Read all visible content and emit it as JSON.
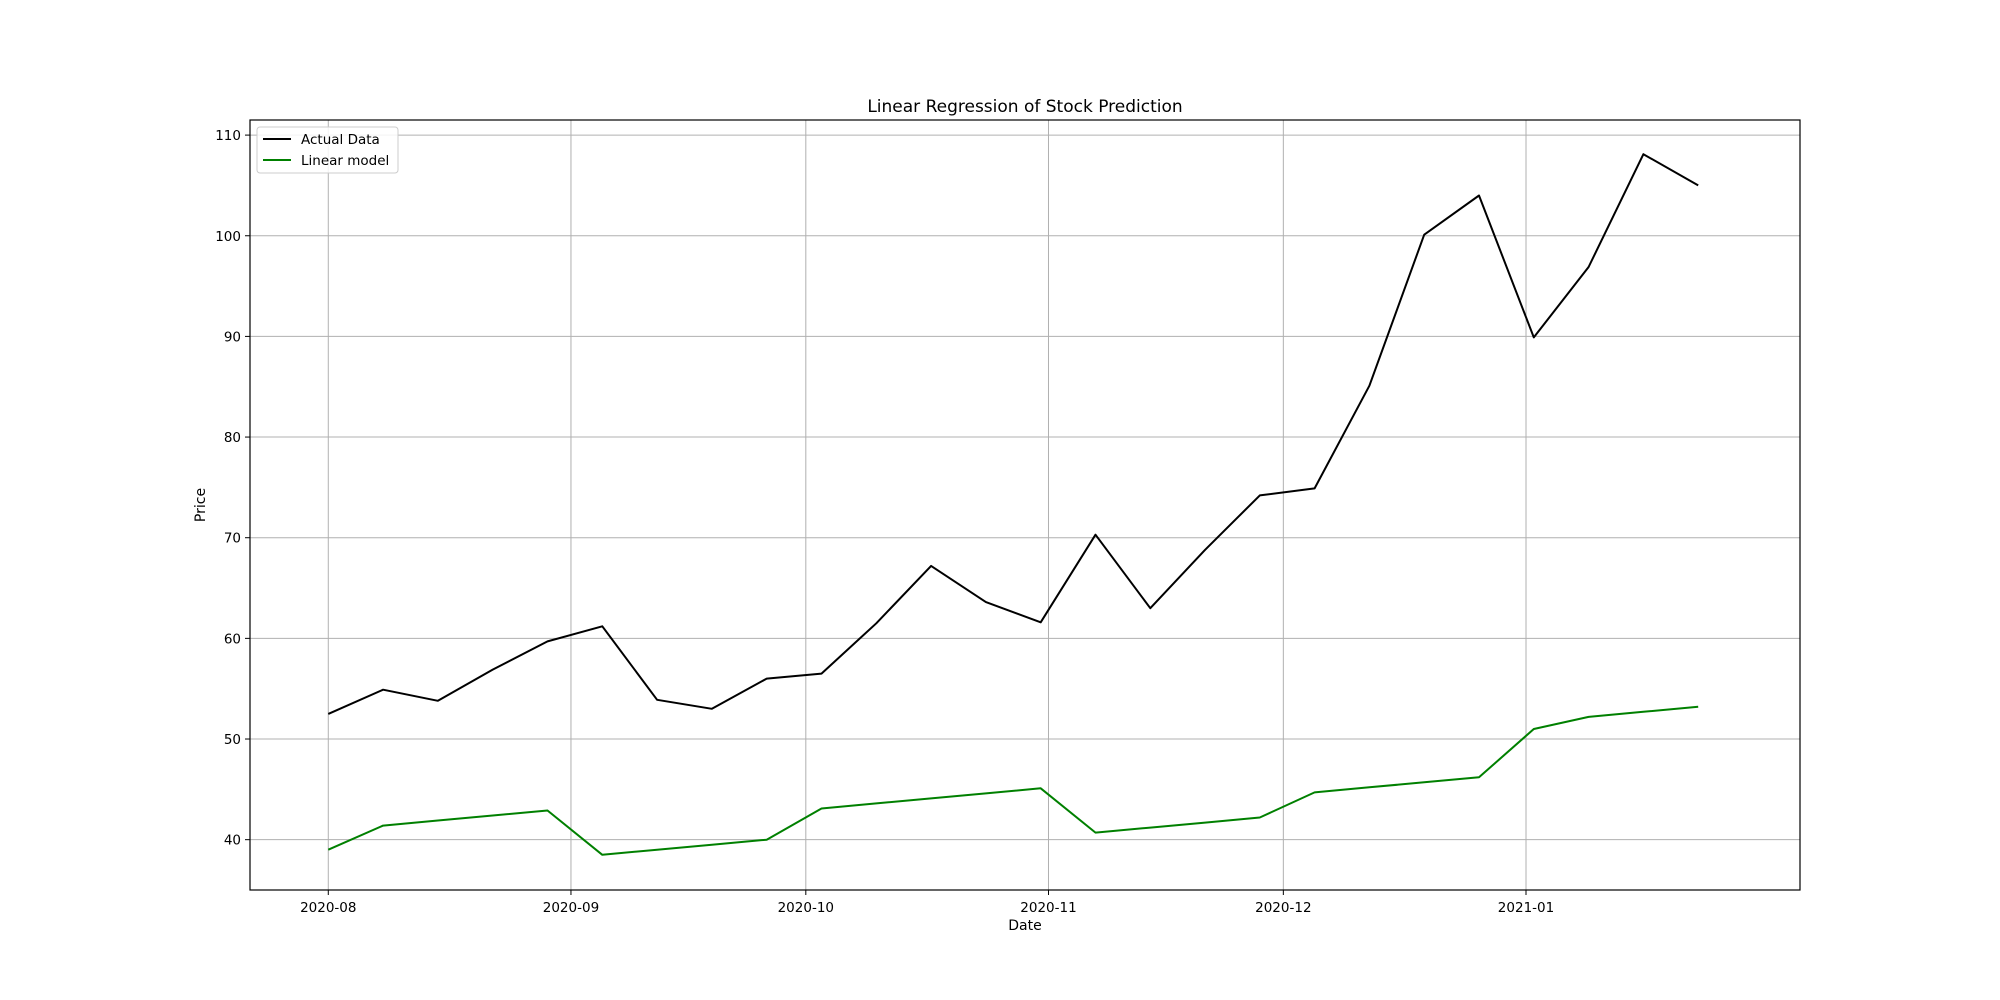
{
  "chart_data": {
    "type": "line",
    "title": "Linear Regression of Stock Prediction",
    "xlabel": "Date",
    "ylabel": "Price",
    "x_tick_labels": [
      {
        "date": "2020-08-01",
        "label": "2020-08"
      },
      {
        "date": "2020-09-01",
        "label": "2020-09"
      },
      {
        "date": "2020-10-01",
        "label": "2020-10"
      },
      {
        "date": "2020-11-01",
        "label": "2020-11"
      },
      {
        "date": "2020-12-01",
        "label": "2020-12"
      },
      {
        "date": "2021-01-01",
        "label": "2021-01"
      }
    ],
    "y_ticks": [
      40,
      50,
      60,
      70,
      80,
      90,
      100,
      110
    ],
    "xlim": [
      "2020-07-22",
      "2021-02-05"
    ],
    "ylim": [
      35,
      111.5
    ],
    "grid": true,
    "legend_position": "upper-left",
    "x": [
      "2020-08-01",
      "2020-08-08",
      "2020-08-15",
      "2020-08-22",
      "2020-08-29",
      "2020-09-05",
      "2020-09-12",
      "2020-09-19",
      "2020-09-26",
      "2020-10-03",
      "2020-10-10",
      "2020-10-17",
      "2020-10-24",
      "2020-10-31",
      "2020-11-07",
      "2020-11-14",
      "2020-11-21",
      "2020-11-28",
      "2020-12-05",
      "2020-12-12",
      "2020-12-19",
      "2020-12-26",
      "2021-01-02",
      "2021-01-09",
      "2021-01-16",
      "2021-01-23"
    ],
    "series": [
      {
        "name": "Actual Data",
        "color": "#000000",
        "values": [
          52.5,
          54.9,
          53.8,
          56.9,
          59.7,
          61.2,
          53.9,
          53.0,
          56.0,
          56.5,
          61.5,
          67.2,
          63.6,
          61.6,
          70.3,
          63.0,
          68.8,
          74.2,
          74.9,
          85.1,
          100.1,
          104.0,
          89.9,
          96.9,
          108.1,
          105.0
        ]
      },
      {
        "name": "Linear model",
        "color": "#008000",
        "values": [
          39.0,
          41.4,
          41.9,
          42.4,
          42.9,
          38.5,
          39.0,
          39.5,
          40.0,
          43.1,
          43.6,
          44.1,
          44.6,
          45.1,
          40.7,
          41.2,
          41.7,
          42.2,
          44.7,
          45.2,
          45.7,
          46.2,
          51.0,
          52.2,
          52.7,
          53.2
        ]
      }
    ]
  }
}
